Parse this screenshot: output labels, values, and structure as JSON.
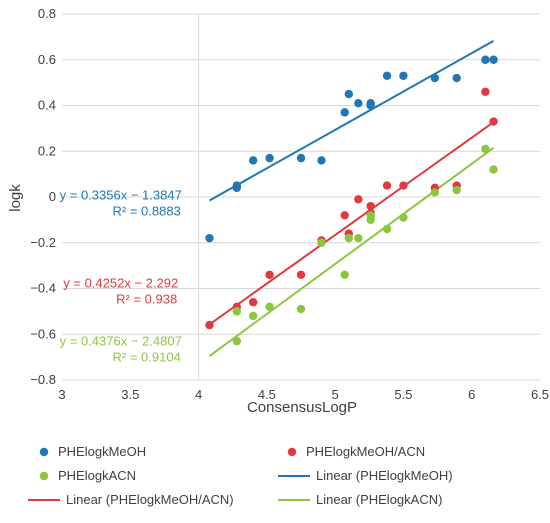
{
  "chart_data": {
    "type": "scatter",
    "xlabel": "ConsensusLogP",
    "ylabel": "logk",
    "xlim": [
      3,
      6.5
    ],
    "ylim": [
      -0.8,
      0.8
    ],
    "x_ticks": [
      "3",
      "3.5",
      "4",
      "4.5",
      "5",
      "5.5",
      "6",
      "6.5"
    ],
    "y_ticks": [
      "0.8",
      "0.6",
      "0.4",
      "0.2",
      "0",
      "−0.2",
      "−0.4",
      "−0.6",
      "−0.8"
    ],
    "grid": "horizontal",
    "legend_position": "bottom",
    "series": [
      {
        "name": "PHElogkMeOH",
        "color": "#1f77b4",
        "points": [
          [
            4.08,
            -0.18
          ],
          [
            4.28,
            0.04
          ],
          [
            4.28,
            0.05
          ],
          [
            4.4,
            0.16
          ],
          [
            4.52,
            0.17
          ],
          [
            4.75,
            0.17
          ],
          [
            4.9,
            0.16
          ],
          [
            5.07,
            0.37
          ],
          [
            5.1,
            0.45
          ],
          [
            5.17,
            0.41
          ],
          [
            5.26,
            0.41
          ],
          [
            5.26,
            0.4
          ],
          [
            5.38,
            0.53
          ],
          [
            5.5,
            0.53
          ],
          [
            5.73,
            0.52
          ],
          [
            5.89,
            0.52
          ],
          [
            6.1,
            0.6
          ],
          [
            6.16,
            0.6
          ]
        ]
      },
      {
        "name": "PHElogkMeOH/ACN",
        "color": "#e0393e",
        "points": [
          [
            4.08,
            -0.56
          ],
          [
            4.28,
            -0.48
          ],
          [
            4.4,
            -0.46
          ],
          [
            4.52,
            -0.34
          ],
          [
            4.75,
            -0.34
          ],
          [
            4.9,
            -0.19
          ],
          [
            5.07,
            -0.08
          ],
          [
            5.1,
            -0.16
          ],
          [
            5.17,
            -0.01
          ],
          [
            5.26,
            -0.04
          ],
          [
            5.26,
            -0.07
          ],
          [
            5.38,
            0.05
          ],
          [
            5.5,
            0.05
          ],
          [
            5.73,
            0.04
          ],
          [
            5.89,
            0.05
          ],
          [
            6.1,
            0.46
          ],
          [
            6.16,
            0.33
          ]
        ]
      },
      {
        "name": "PHElogkACN",
        "color": "#8cc63f",
        "points": [
          [
            4.28,
            -0.5
          ],
          [
            4.28,
            -0.63
          ],
          [
            4.4,
            -0.52
          ],
          [
            4.52,
            -0.48
          ],
          [
            4.75,
            -0.49
          ],
          [
            4.9,
            -0.2
          ],
          [
            5.07,
            -0.34
          ],
          [
            5.1,
            -0.18
          ],
          [
            5.17,
            -0.18
          ],
          [
            5.26,
            -0.08
          ],
          [
            5.26,
            -0.1
          ],
          [
            5.38,
            -0.14
          ],
          [
            5.5,
            -0.09
          ],
          [
            5.73,
            0.02
          ],
          [
            5.89,
            0.03
          ],
          [
            6.1,
            0.21
          ],
          [
            6.16,
            0.12
          ]
        ]
      }
    ],
    "trendlines": [
      {
        "name": "Linear (PHElogkMeOH)",
        "color": "#1f77b4",
        "slope": 0.3356,
        "intercept": -1.3847,
        "x_range": [
          4.08,
          6.16
        ],
        "equation": "y = 0.3356x − 1.3847",
        "r2": "R² = 0.8883"
      },
      {
        "name": "Linear (PHElogkMeOH/ACN)",
        "color": "#e0393e",
        "slope": 0.4252,
        "intercept": -2.292,
        "x_range": [
          4.08,
          6.16
        ],
        "equation": "y = 0.4252x − 2.292",
        "r2": "R² = 0.938"
      },
      {
        "name": "Linear (PHElogkACN)",
        "color": "#8cc63f",
        "slope": 0.4376,
        "intercept": -2.4807,
        "x_range": [
          4.08,
          6.16
        ],
        "equation": "y = 0.4376x − 2.4807",
        "r2": "R² = 0.9104"
      }
    ]
  },
  "legend": [
    {
      "name": "PHElogkMeOH",
      "kind": "marker",
      "color": "#1f77b4"
    },
    {
      "name": "PHElogkMeOH/ACN",
      "kind": "marker",
      "color": "#e0393e"
    },
    {
      "name": "PHElogkACN",
      "kind": "marker",
      "color": "#8cc63f"
    },
    {
      "name": "Linear (PHElogkMeOH)",
      "kind": "line",
      "color": "#1f77b4"
    },
    {
      "name": "Linear (PHElogkMeOH/ACN)",
      "kind": "line",
      "color": "#e0393e"
    },
    {
      "name": "Linear (PHElogkACN)",
      "kind": "line",
      "color": "#8cc63f"
    }
  ]
}
